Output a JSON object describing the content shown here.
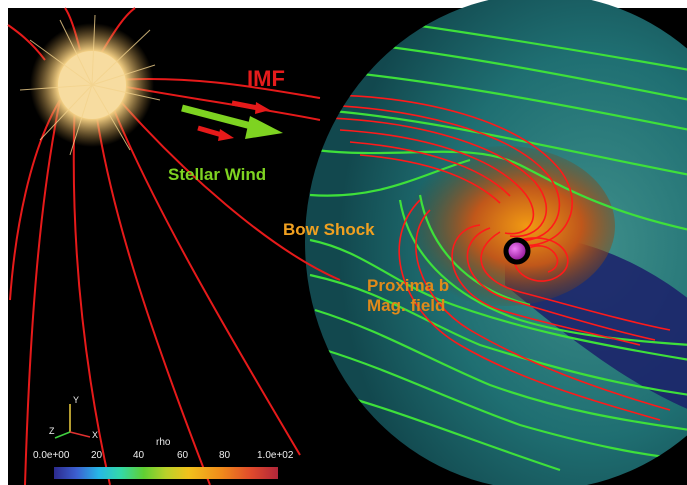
{
  "labels": {
    "imf": "IMF",
    "stellar_wind": "Stellar Wind",
    "bow_shock": "Bow Shock",
    "planet_line1": "Proxima b",
    "planet_line2": "Mag. field"
  },
  "colorbar": {
    "title": "rho",
    "ticks": [
      "0.0e+00",
      "20",
      "40",
      "60",
      "80",
      "1.0e+02"
    ]
  },
  "axes_triad": {
    "y": "Y",
    "z": "Z",
    "x": "X"
  },
  "colors": {
    "background": "#000000",
    "field_lines_red": "#e61a1a",
    "streamlines_green": "#3ee03a",
    "domain_teal": "#1d6a6d",
    "planet": "#c21bc8"
  }
}
